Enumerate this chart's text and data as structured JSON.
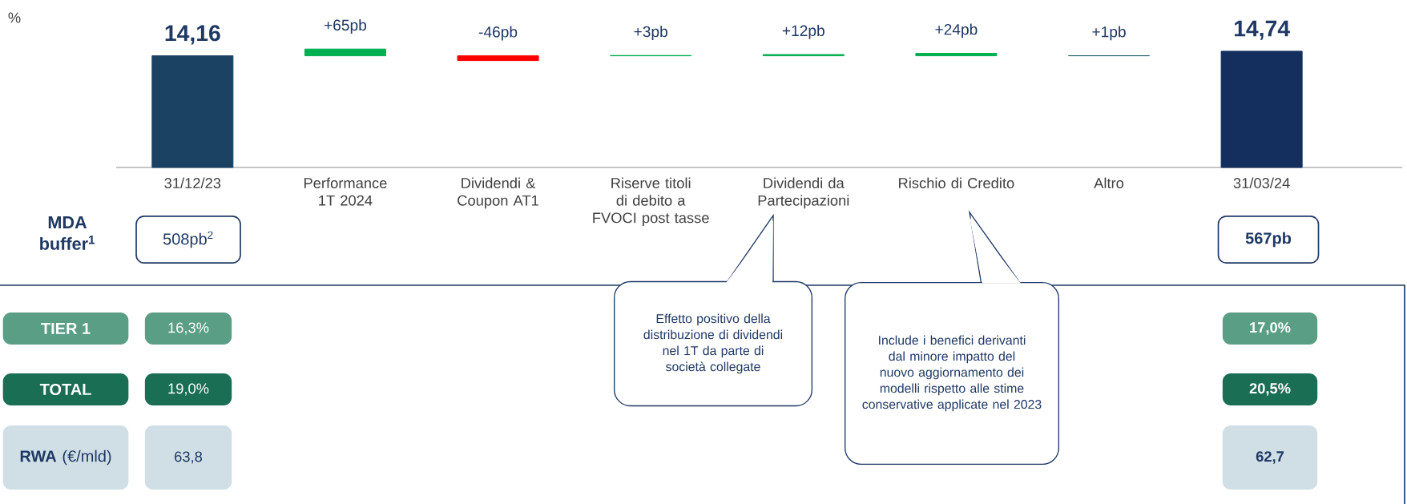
{
  "chart_data": {
    "type": "bar",
    "categories": [
      "31/12/23",
      "Performance 1T 2024",
      "Dividendi & Coupon AT1",
      "Riserve titoli di debito a FVOCI post tasse",
      "Dividendi da Partecipazioni",
      "Rischio di Credito",
      "Altro",
      "31/03/24"
    ],
    "series": [
      {
        "values": [
          14.16,
          null,
          null,
          null,
          null,
          null,
          null,
          14.74
        ],
        "colors": [
          "#1b4263",
          null,
          null,
          null,
          null,
          null,
          null,
          "#142f5e"
        ],
        "value_labels": [
          "14,16",
          null,
          null,
          null,
          null,
          null,
          null,
          "14,74"
        ]
      },
      {
        "axis": "y2",
        "values": [
          null,
          65,
          -46,
          3,
          12,
          24,
          1,
          null
        ],
        "colors": [
          null,
          "#00b050",
          "#ff0000",
          "#00b050",
          "#00b050",
          "#00b050",
          "#1f6070",
          null
        ],
        "value_labels": [
          null,
          "+65pb",
          "-46pb",
          "+3pb",
          "+12pb",
          "+24pb",
          "+1pb",
          null
        ]
      }
    ],
    "annotations": [
      "MDA buffer$^{1}$",
      "508pb$^{2}$",
      "567pb",
      "TIER 1",
      "16,3%",
      "17,0%",
      "TOTAL",
      "19,0%",
      "20,5%",
      "**RWA** (€/mld)",
      "63,8",
      "62,7",
      "Effetto positivo della distribuzione di dividendi nel 1T da parte di società collegate",
      "Include i benefici derivanti dal minore impatto del nuovo aggiornamento dei modelli rispetto alle stime conservative applicate nel 2023",
      "%"
    ]
  }
}
